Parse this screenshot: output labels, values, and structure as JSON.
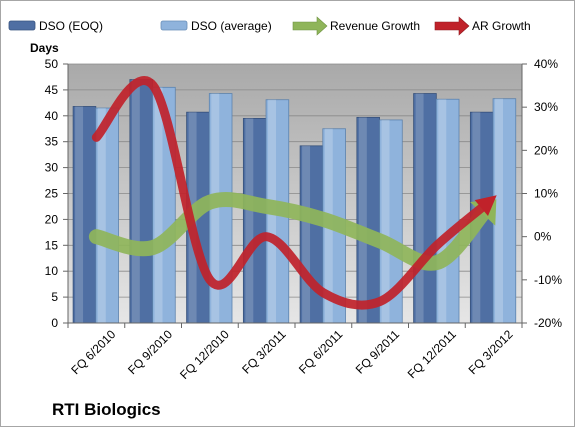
{
  "chart_data": {
    "type": "bar",
    "title": "",
    "brand_label": "RTI Biologics",
    "y_left": {
      "label": "Days",
      "min": 0,
      "max": 50,
      "step": 5
    },
    "y_right": {
      "label": "",
      "min": -20,
      "max": 40,
      "step": 10,
      "unit": "%"
    },
    "categories": [
      "FQ 6/2010",
      "FQ 9/2010",
      "FQ 12/2010",
      "FQ 3/2011",
      "FQ 6/2011",
      "FQ 9/2011",
      "FQ 12/2011",
      "FQ 3/2012"
    ],
    "series": [
      {
        "name": "DSO (EOQ)",
        "kind": "bar",
        "axis": "left",
        "color": "#4f6fa3",
        "values": [
          41.8,
          47.0,
          40.7,
          39.5,
          34.2,
          39.7,
          44.3,
          40.7
        ]
      },
      {
        "name": "DSO (average)",
        "kind": "bar",
        "axis": "left",
        "color": "#8fb3dc",
        "values": [
          41.5,
          45.5,
          44.3,
          43.1,
          37.5,
          39.2,
          43.2,
          43.3
        ]
      },
      {
        "name": "Revenue Growth",
        "kind": "arrow-line",
        "axis": "right",
        "color": "#8fb55a",
        "values": [
          0,
          -2.5,
          8,
          7,
          4,
          -1,
          -6,
          8
        ]
      },
      {
        "name": "AR Growth",
        "kind": "arrow-line",
        "axis": "right",
        "color": "#c0222a",
        "values": [
          23,
          35,
          -10,
          0,
          -13,
          -15,
          -2,
          9
        ]
      }
    ],
    "grid": true,
    "legend_position": "top",
    "plot_background": "#c0c0c0"
  }
}
